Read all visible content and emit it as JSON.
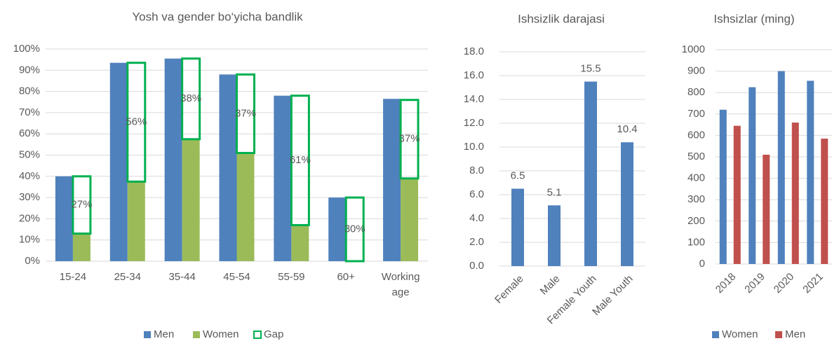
{
  "chart_data": [
    {
      "type": "bar",
      "title": "Yosh va gender bo‘yicha bandlik",
      "categories": [
        "15-24",
        "25-34",
        "35-44",
        "45-54",
        "55-59",
        "60+",
        "Working age"
      ],
      "series": [
        {
          "name": "Men",
          "color": "#4f81bd",
          "stack": 0,
          "values": [
            40,
            93.5,
            95.5,
            88,
            78,
            30,
            76.5
          ]
        },
        {
          "name": "Women",
          "color": "#9bbb59",
          "stack": 1,
          "values": [
            13,
            37.5,
            57.5,
            51,
            17,
            0,
            39
          ]
        },
        {
          "name": "Gap",
          "color": "#00b050",
          "stack": 1,
          "outline": true,
          "values": [
            27,
            56,
            38,
            37,
            61,
            30,
            37
          ],
          "value_labels": [
            "27%",
            "56%",
            "38%",
            "37%",
            "61%",
            "30%",
            "37%"
          ]
        }
      ],
      "ylim": [
        0,
        100
      ],
      "yticks": [
        {
          "value": 0,
          "label": "0%"
        },
        {
          "value": 10,
          "label": "10%"
        },
        {
          "value": 20,
          "label": "20%"
        },
        {
          "value": 30,
          "label": "30%"
        },
        {
          "value": 40,
          "label": "40%"
        },
        {
          "value": 50,
          "label": "50%"
        },
        {
          "value": 60,
          "label": "60%"
        },
        {
          "value": 70,
          "label": "70%"
        },
        {
          "value": 80,
          "label": "80%"
        },
        {
          "value": 90,
          "label": "90%"
        },
        {
          "value": 100,
          "label": "100%"
        }
      ],
      "grid": true,
      "legend": "bottom"
    },
    {
      "type": "bar",
      "title": "Ishsizlik darajasi",
      "categories": [
        "Female",
        "Male",
        "Female Youth",
        "Male Youth"
      ],
      "values": [
        6.5,
        5.1,
        15.5,
        10.4
      ],
      "color": "#4f81bd",
      "show_values": true,
      "ylim": [
        0,
        18
      ],
      "yticks": [
        {
          "value": 0,
          "label": "0.0"
        },
        {
          "value": 2,
          "label": "2.0"
        },
        {
          "value": 4,
          "label": "4.0"
        },
        {
          "value": 6,
          "label": "6.0"
        },
        {
          "value": 8,
          "label": "8.0"
        },
        {
          "value": 10,
          "label": "10.0"
        },
        {
          "value": 12,
          "label": "12.0"
        },
        {
          "value": 14,
          "label": "14.0"
        },
        {
          "value": 16,
          "label": "16.0"
        },
        {
          "value": 18,
          "label": "18.0"
        }
      ],
      "grid": true
    },
    {
      "type": "bar",
      "title": "Ishsizlar (ming)",
      "categories": [
        "2018",
        "2019",
        "2020",
        "2021"
      ],
      "series": [
        {
          "name": "Women",
          "color": "#4f81bd",
          "values": [
            720,
            825,
            900,
            855
          ]
        },
        {
          "name": "Men",
          "color": "#c0504d",
          "values": [
            645,
            510,
            660,
            585
          ]
        }
      ],
      "ylim": [
        0,
        1000
      ],
      "yticks": [
        0,
        100,
        200,
        300,
        400,
        500,
        600,
        700,
        800,
        900,
        1000
      ],
      "grid": true,
      "legend": "bottom"
    }
  ]
}
